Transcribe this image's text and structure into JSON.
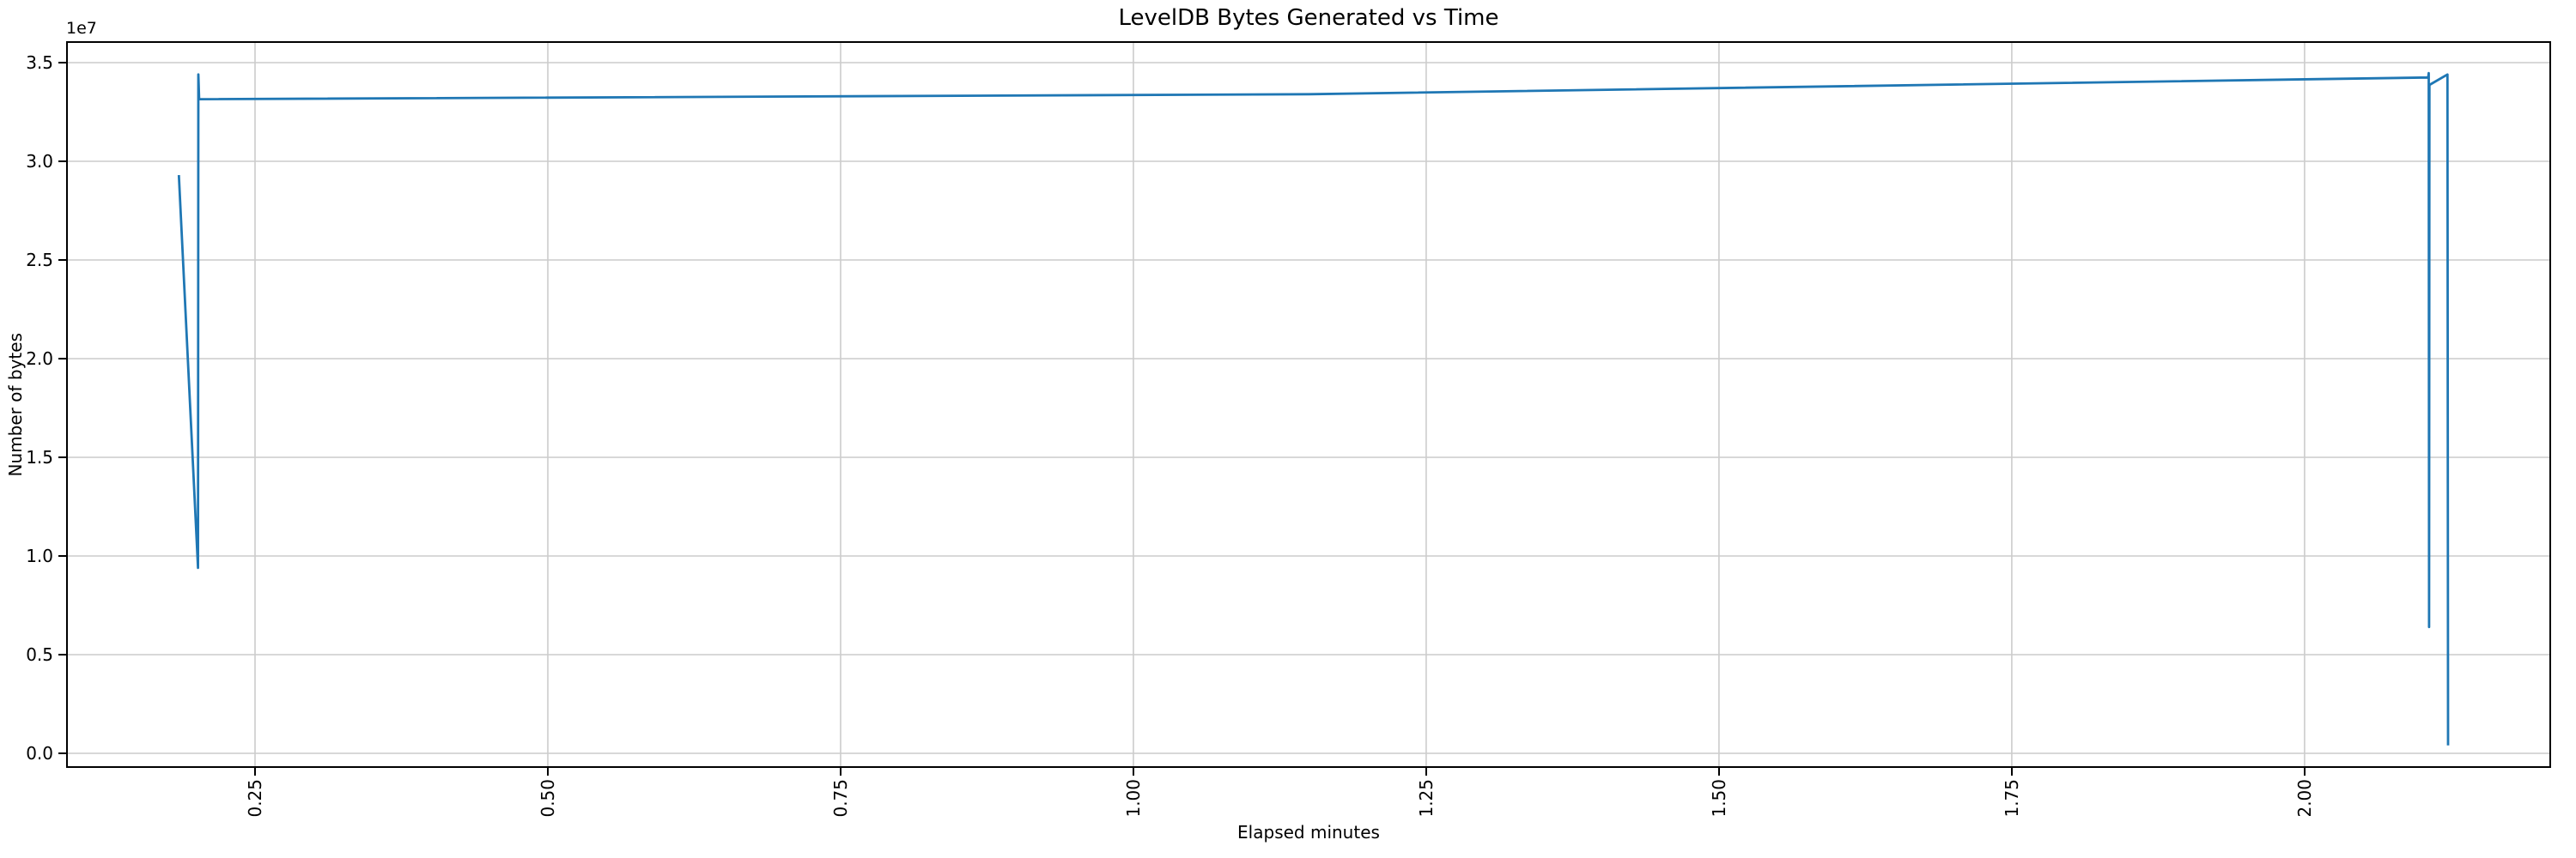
{
  "chart_data": {
    "type": "line",
    "title": "LevelDB Bytes Generated vs Time",
    "xlabel": "Elapsed minutes",
    "ylabel": "Number of bytes",
    "y_offset_text": "1e7",
    "grid": true,
    "legend_position": "none",
    "xlim": [
      0.0887,
      2.2105
    ],
    "ylim": [
      -739000,
      36087000
    ],
    "x_ticks": [
      0.25,
      0.5,
      0.75,
      1.0,
      1.25,
      1.5,
      1.75,
      2.0
    ],
    "x_tick_labels": [
      "0.25",
      "0.50",
      "0.75",
      "1.00",
      "1.25",
      "1.50",
      "1.75",
      "2.00"
    ],
    "y_ticks": [
      0,
      5000000,
      10000000,
      15000000,
      20000000,
      25000000,
      30000000,
      35000000
    ],
    "y_tick_labels": [
      "0.0",
      "0.5",
      "1.0",
      "1.5",
      "2.0",
      "2.5",
      "3.0",
      "3.5"
    ],
    "series": [
      {
        "name": "bytes_generated",
        "color": "#1f77b4",
        "points": [
          [
            0.185,
            29300000
          ],
          [
            0.2013,
            9400000
          ],
          [
            0.2016,
            34400000
          ],
          [
            0.2023,
            33150000
          ],
          [
            1.15,
            33400000
          ],
          [
            2.1055,
            34250000
          ],
          [
            2.106,
            34470000
          ],
          [
            2.1063,
            6400000
          ],
          [
            2.1066,
            33870000
          ],
          [
            2.122,
            34400000
          ],
          [
            2.1225,
            400000
          ]
        ]
      }
    ]
  },
  "style": {
    "line_color": "#1f77b4",
    "grid_color": "#cccccc",
    "spine_color": "#000000",
    "background": "#ffffff",
    "text_color": "#000000"
  }
}
